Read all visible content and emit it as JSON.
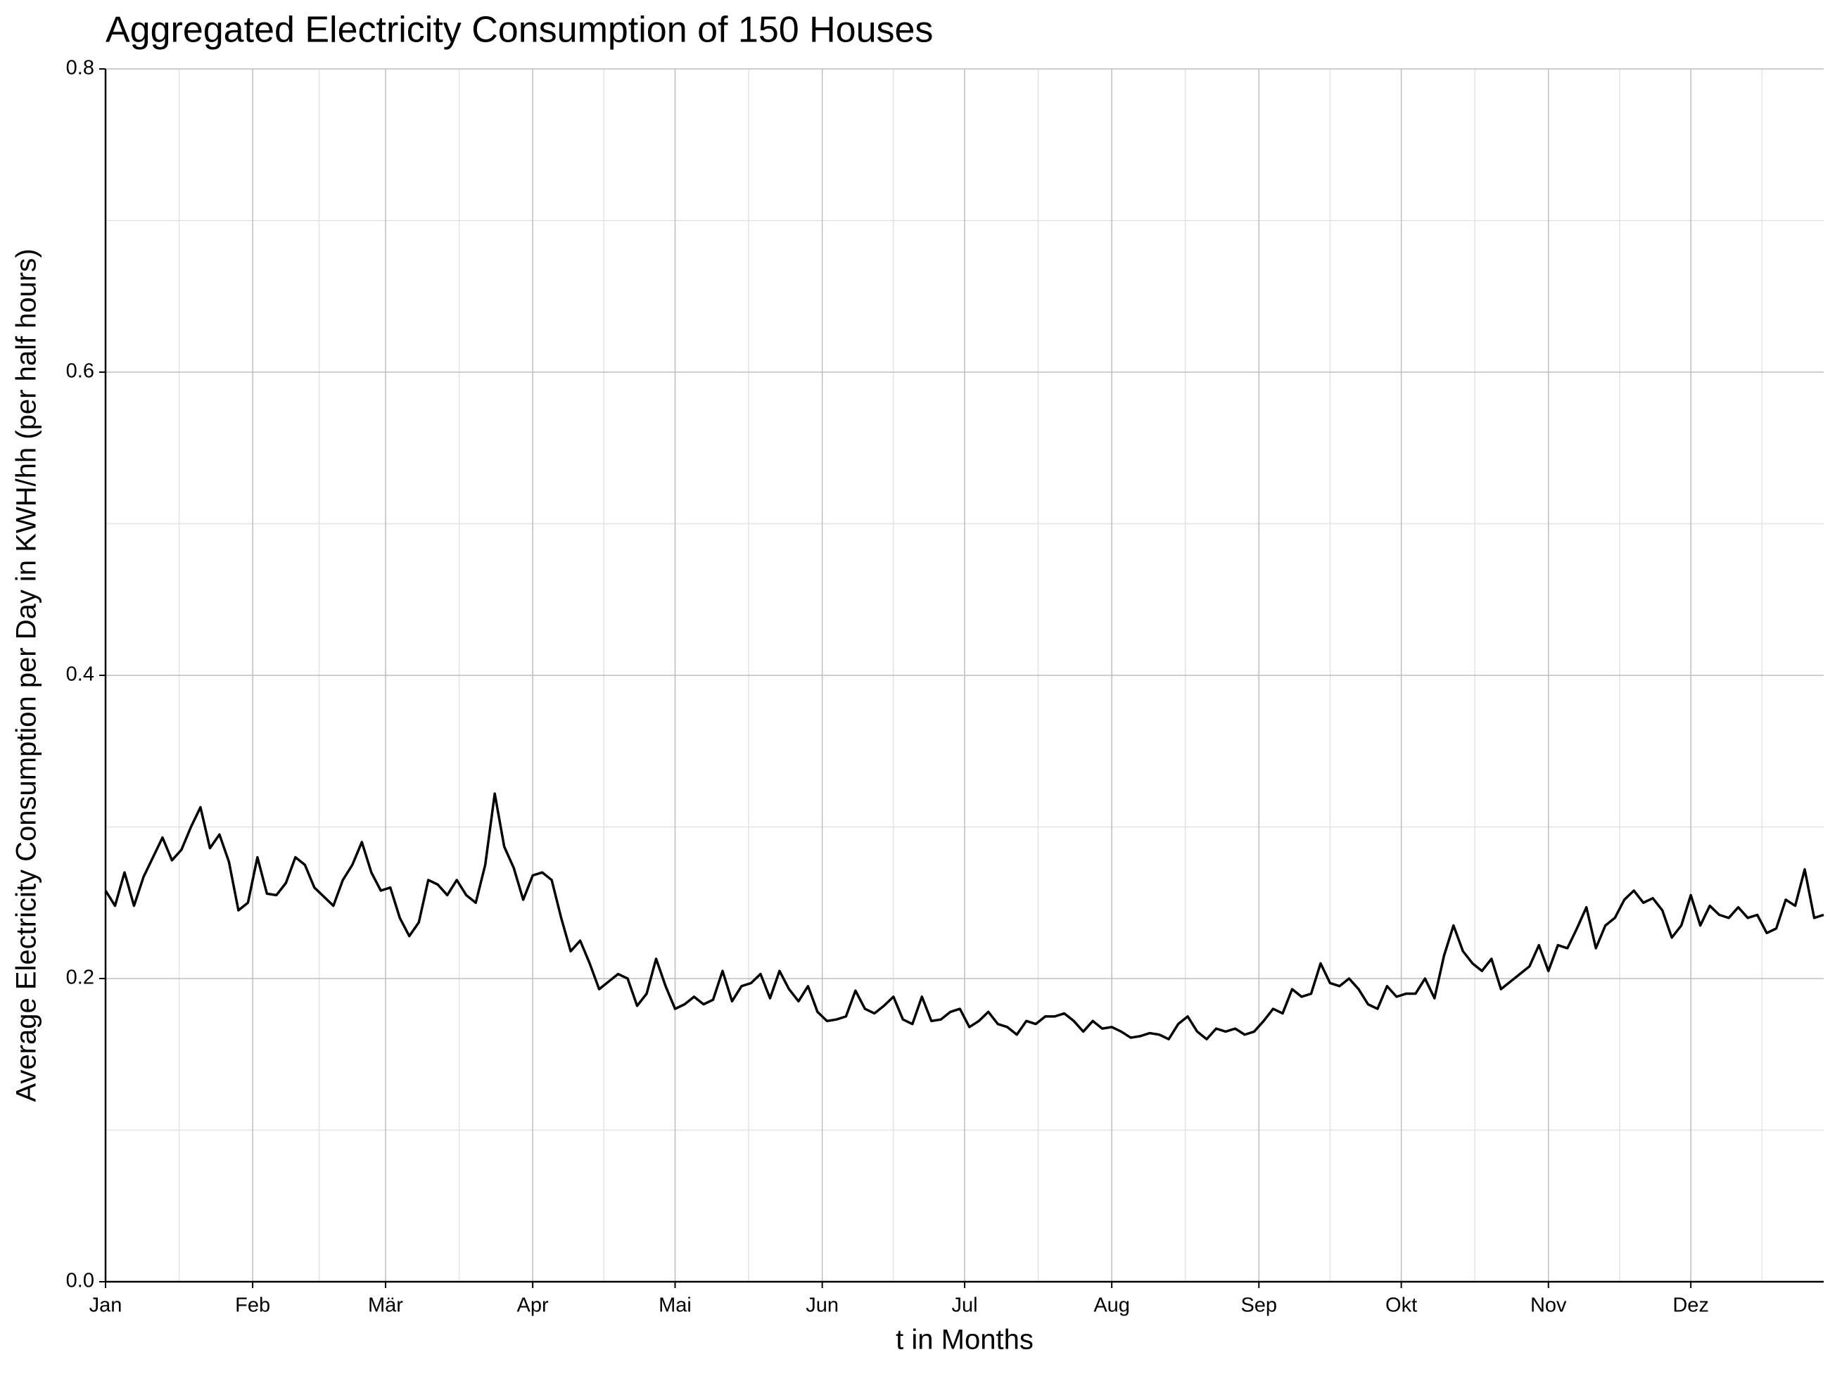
{
  "chart_data": {
    "type": "line",
    "title": "Aggregated Electricity Consumption of 150 Houses",
    "x_label": "t in Months",
    "y_label": "Average Electricity Consumption per Day in KWH/hh (per half hours)",
    "xlim": [
      0,
      362
    ],
    "ylim": [
      0,
      0.8
    ],
    "xticks": [
      {
        "value": 0,
        "label": "Jan"
      },
      {
        "value": 31,
        "label": "Feb"
      },
      {
        "value": 59,
        "label": "Mär"
      },
      {
        "value": 90,
        "label": "Apr"
      },
      {
        "value": 120,
        "label": "Mai"
      },
      {
        "value": 151,
        "label": "Jun"
      },
      {
        "value": 181,
        "label": "Jul"
      },
      {
        "value": 212,
        "label": "Aug"
      },
      {
        "value": 243,
        "label": "Sep"
      },
      {
        "value": 273,
        "label": "Okt"
      },
      {
        "value": 304,
        "label": "Nov"
      },
      {
        "value": 334,
        "label": "Dez"
      }
    ],
    "yticks": [
      {
        "value": 0,
        "label": "0.0"
      },
      0.2,
      0.4,
      0.6,
      0.8
    ],
    "grid": true,
    "x": [
      0,
      2,
      4,
      6,
      8,
      10,
      12,
      14,
      16,
      18,
      20,
      22,
      24,
      26,
      28,
      30,
      32,
      34,
      36,
      38,
      40,
      42,
      44,
      46,
      48,
      50,
      52,
      54,
      56,
      58,
      60,
      62,
      64,
      66,
      68,
      70,
      72,
      74,
      76,
      78,
      80,
      82,
      84,
      86,
      88,
      90,
      92,
      94,
      96,
      98,
      100,
      102,
      104,
      106,
      108,
      110,
      112,
      114,
      116,
      118,
      120,
      122,
      124,
      126,
      128,
      130,
      132,
      134,
      136,
      138,
      140,
      142,
      144,
      146,
      148,
      150,
      152,
      154,
      156,
      158,
      160,
      162,
      164,
      166,
      168,
      170,
      172,
      174,
      176,
      178,
      180,
      182,
      184,
      186,
      188,
      190,
      192,
      194,
      196,
      198,
      200,
      202,
      204,
      206,
      208,
      210,
      212,
      214,
      216,
      218,
      220,
      222,
      224,
      226,
      228,
      230,
      232,
      234,
      236,
      238,
      240,
      242,
      244,
      246,
      248,
      250,
      252,
      254,
      256,
      258,
      260,
      262,
      264,
      266,
      268,
      270,
      272,
      274,
      276,
      278,
      280,
      282,
      284,
      286,
      288,
      290,
      292,
      294,
      296,
      298,
      300,
      302,
      304,
      306,
      308,
      310,
      312,
      314,
      316,
      318,
      320,
      322,
      324,
      326,
      328,
      330,
      332,
      334,
      336,
      338,
      340,
      342,
      344,
      346,
      348,
      350,
      352,
      354,
      356,
      358,
      360,
      362
    ],
    "series": [
      {
        "color": "#000000",
        "values": [
          0.258,
          0.248,
          0.27,
          0.248,
          0.267,
          0.28,
          0.293,
          0.278,
          0.285,
          0.3,
          0.313,
          0.286,
          0.295,
          0.277,
          0.245,
          0.25,
          0.28,
          0.256,
          0.255,
          0.263,
          0.28,
          0.275,
          0.26,
          0.254,
          0.248,
          0.265,
          0.275,
          0.29,
          0.27,
          0.258,
          0.26,
          0.24,
          0.228,
          0.237,
          0.265,
          0.262,
          0.255,
          0.265,
          0.255,
          0.25,
          0.275,
          0.322,
          0.287,
          0.273,
          0.252,
          0.268,
          0.27,
          0.265,
          0.24,
          0.218,
          0.225,
          0.21,
          0.193,
          0.198,
          0.203,
          0.2,
          0.182,
          0.19,
          0.213,
          0.195,
          0.18,
          0.183,
          0.188,
          0.183,
          0.186,
          0.205,
          0.185,
          0.195,
          0.197,
          0.203,
          0.187,
          0.205,
          0.193,
          0.185,
          0.195,
          0.178,
          0.172,
          0.173,
          0.175,
          0.192,
          0.18,
          0.177,
          0.182,
          0.188,
          0.173,
          0.17,
          0.188,
          0.172,
          0.173,
          0.178,
          0.18,
          0.168,
          0.172,
          0.178,
          0.17,
          0.168,
          0.163,
          0.172,
          0.17,
          0.175,
          0.175,
          0.177,
          0.172,
          0.165,
          0.172,
          0.167,
          0.168,
          0.165,
          0.161,
          0.162,
          0.164,
          0.163,
          0.16,
          0.17,
          0.175,
          0.165,
          0.16,
          0.167,
          0.165,
          0.167,
          0.163,
          0.165,
          0.172,
          0.18,
          0.177,
          0.193,
          0.188,
          0.19,
          0.21,
          0.197,
          0.195,
          0.2,
          0.193,
          0.183,
          0.18,
          0.195,
          0.188,
          0.19,
          0.19,
          0.2,
          0.187,
          0.215,
          0.235,
          0.218,
          0.21,
          0.205,
          0.213,
          0.193,
          0.198,
          0.203,
          0.208,
          0.222,
          0.205,
          0.222,
          0.22,
          0.233,
          0.247,
          0.22,
          0.235,
          0.24,
          0.252,
          0.258,
          0.25,
          0.253,
          0.245,
          0.227,
          0.235,
          0.255,
          0.235,
          0.248,
          0.242,
          0.24,
          0.247,
          0.24,
          0.242,
          0.23,
          0.233,
          0.252,
          0.248,
          0.272,
          0.24,
          0.242
        ]
      }
    ]
  }
}
